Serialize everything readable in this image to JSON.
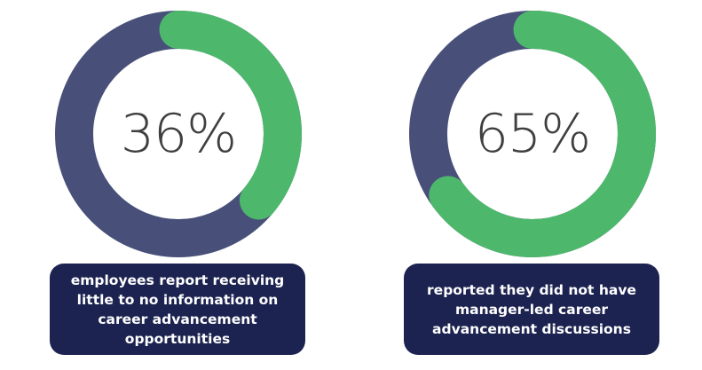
{
  "colors": {
    "track": "#485079",
    "fill": "#4db86c",
    "caption_bg": "#1c2350",
    "caption_text": "#ffffff",
    "value_text": "#3f3f3f",
    "background": "#ffffff"
  },
  "chart_data": [
    {
      "type": "donut",
      "value": 36,
      "max": 100,
      "label": "36%",
      "caption": "employees report receiving little to no information on career advancement opportunities"
    },
    {
      "type": "donut",
      "value": 65,
      "max": 100,
      "label": "65%",
      "caption": "reported they did not have manager-led career advancement discussions"
    }
  ]
}
